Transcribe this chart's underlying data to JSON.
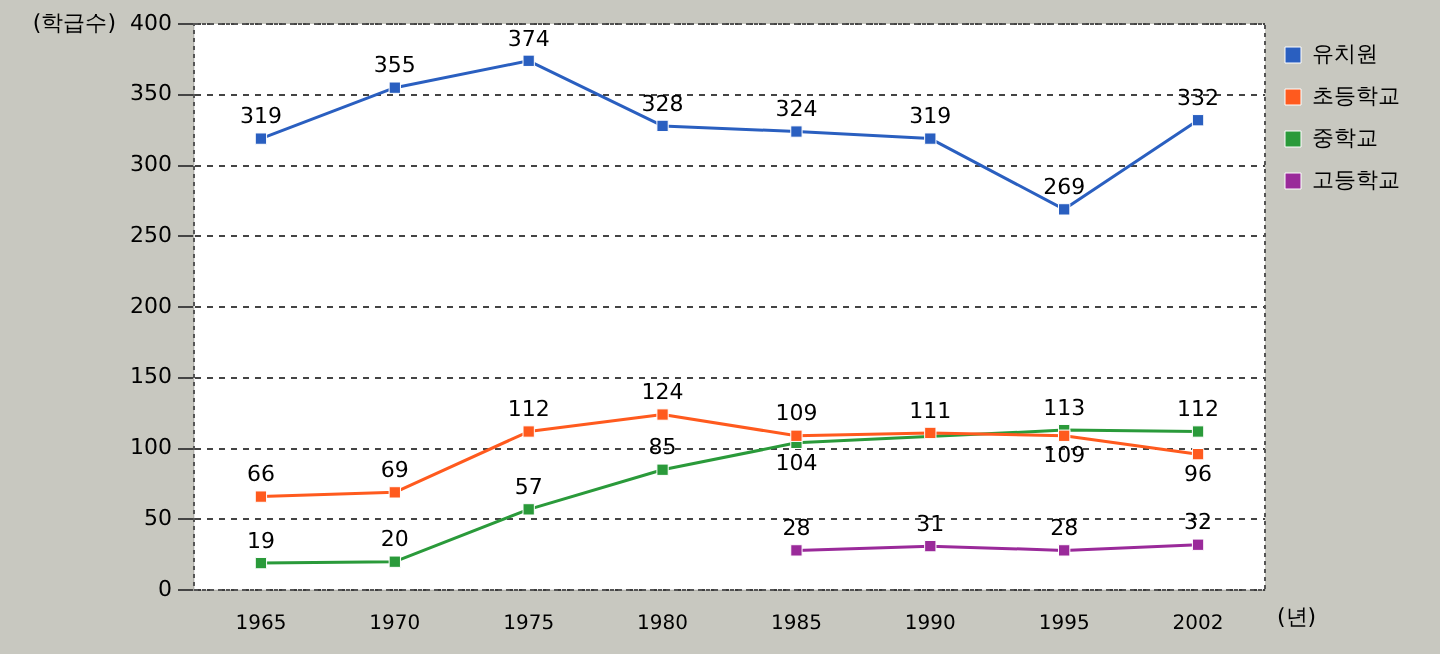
{
  "chart_data": {
    "type": "line",
    "ylabel": "(학급수)",
    "xlabel": "(년)",
    "categories": [
      "1965",
      "1970",
      "1975",
      "1980",
      "1985",
      "1990",
      "1995",
      "2002"
    ],
    "series": [
      {
        "name": "유치원",
        "color": "#2a5fc0",
        "values": [
          319,
          355,
          374,
          328,
          324,
          319,
          269,
          332
        ],
        "value_labels": [
          "319",
          "355",
          "374",
          "328",
          "324",
          "319",
          "269",
          "332"
        ]
      },
      {
        "name": "초등학교",
        "color": "#ff5a1e",
        "values": [
          66,
          69,
          112,
          124,
          109,
          111,
          109,
          96
        ],
        "value_labels": [
          "66",
          "69",
          "112",
          "124",
          "109",
          "111",
          "109",
          "96"
        ]
      },
      {
        "name": "중학교",
        "color": "#2a9a3a",
        "values": [
          19,
          20,
          57,
          85,
          104,
          null,
          113,
          112
        ],
        "value_labels": [
          "19",
          "20",
          "57",
          "85",
          "104",
          null,
          "113",
          "112"
        ]
      },
      {
        "name": "고등학교",
        "color": "#9a2a9a",
        "values": [
          null,
          null,
          null,
          null,
          28,
          31,
          28,
          32
        ],
        "value_labels": [
          null,
          null,
          null,
          null,
          "28",
          "31",
          "28",
          "32"
        ]
      }
    ],
    "ylim": [
      0,
      400
    ],
    "yticks": [
      0,
      50,
      100,
      150,
      200,
      250,
      300,
      350,
      400
    ],
    "grid": "y",
    "legend": "right",
    "marker": "square",
    "line_style": "solid"
  }
}
